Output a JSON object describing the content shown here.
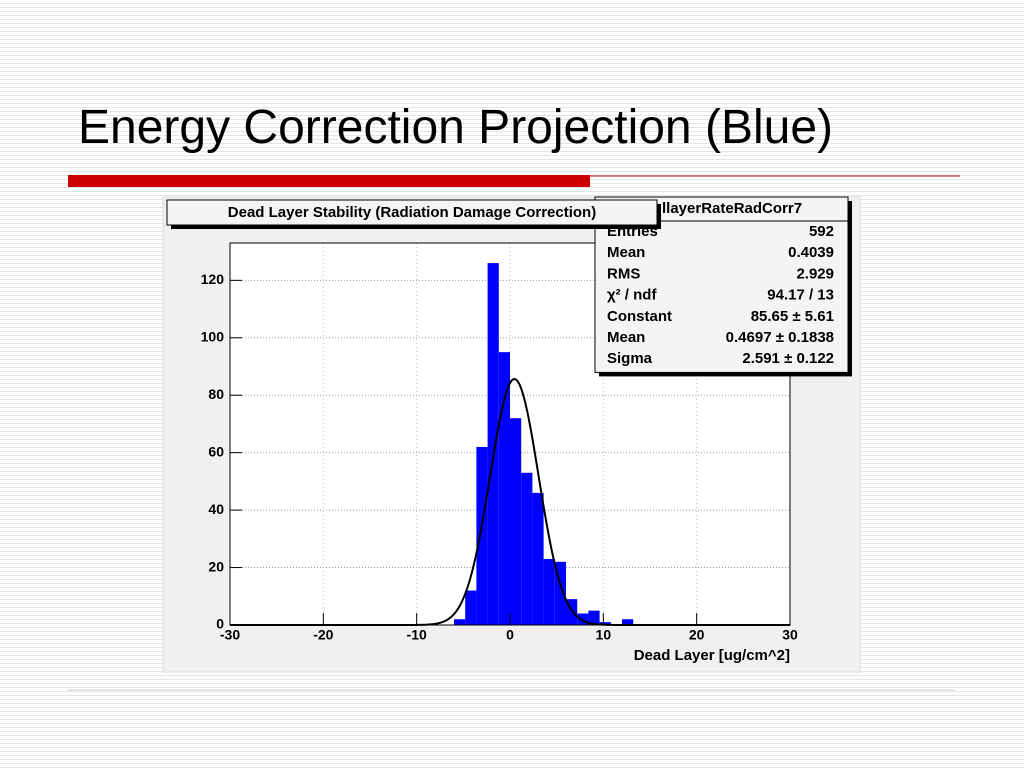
{
  "header": {
    "title": "Energy Correction Projection (Blue)"
  },
  "chart_data": {
    "type": "histogram",
    "title": "Dead Layer Stability (Radiation Damage Correction)",
    "xlabel": "Dead Layer [ug/cm^2]",
    "bins": [
      -6,
      -4.8,
      -3.6,
      -2.4,
      -1.2,
      0,
      1.2,
      2.4,
      3.6,
      4.8,
      6,
      7.2,
      8.4,
      9.6,
      10.8,
      12,
      13.2
    ],
    "counts": [
      2,
      12,
      62,
      126,
      95,
      72,
      53,
      46,
      23,
      22,
      9,
      4,
      5,
      1,
      0,
      2
    ],
    "color": "#0000ff",
    "fit_color": "#000000",
    "xlim": [
      -30,
      30
    ],
    "ylim": [
      0,
      133
    ],
    "xticks": [
      -30,
      -20,
      -10,
      0,
      10,
      20,
      30
    ],
    "yticks": [
      0,
      20,
      40,
      60,
      80,
      100,
      120
    ],
    "grid": true,
    "stats": {
      "title": "llayerRateRadCorr7",
      "rows": [
        {
          "name": "Entries",
          "value": 592
        },
        {
          "name": "Mean",
          "value": 0.4039
        },
        {
          "name": "RMS",
          "value": 2.929
        },
        {
          "name": "χ² / ndf",
          "label": "94.17 / 13"
        },
        {
          "name": "Constant",
          "value": 85.65,
          "label": "85.65 ± 5.61"
        },
        {
          "name": "Mean",
          "value": 0.4697,
          "label": "0.4697 ± 0.1838"
        },
        {
          "name": "Sigma",
          "value": 2.591,
          "label": "2.591 ± 0.122"
        }
      ]
    }
  }
}
